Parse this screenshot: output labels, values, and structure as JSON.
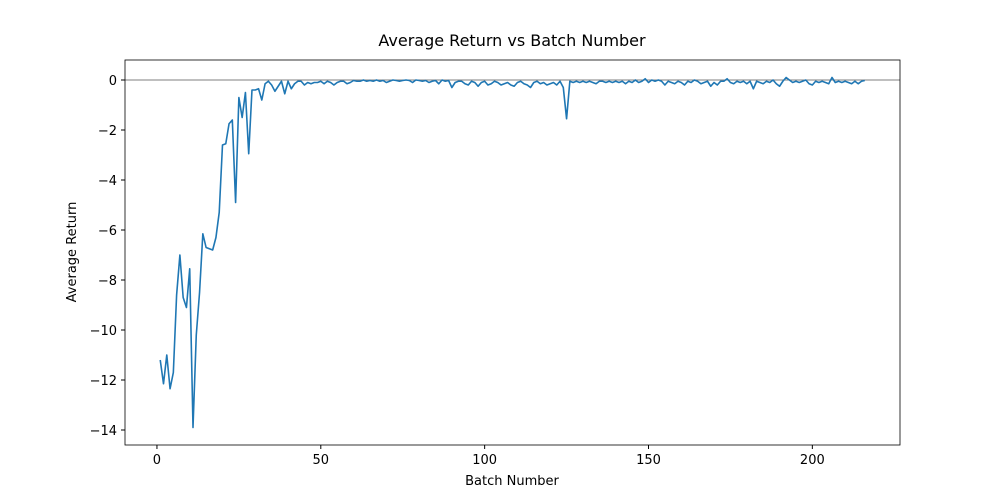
{
  "chart_data": {
    "type": "line",
    "title": "Average Return vs Batch Number",
    "xlabel": "Batch Number",
    "ylabel": "Average Return",
    "x": [
      1,
      2,
      3,
      4,
      5,
      6,
      7,
      8,
      9,
      10,
      11,
      12,
      13,
      14,
      15,
      16,
      17,
      18,
      19,
      20,
      21,
      22,
      23,
      24,
      25,
      26,
      27,
      28,
      29,
      30,
      31,
      32,
      33,
      34,
      35,
      36,
      37,
      38,
      39,
      40,
      41,
      42,
      43,
      44,
      45,
      46,
      47,
      48,
      49,
      50,
      51,
      52,
      53,
      54,
      55,
      56,
      57,
      58,
      59,
      60,
      61,
      62,
      63,
      64,
      65,
      66,
      67,
      68,
      69,
      70,
      71,
      72,
      73,
      74,
      75,
      76,
      77,
      78,
      79,
      80,
      81,
      82,
      83,
      84,
      85,
      86,
      87,
      88,
      89,
      90,
      91,
      92,
      93,
      94,
      95,
      96,
      97,
      98,
      99,
      100,
      101,
      102,
      103,
      104,
      105,
      106,
      107,
      108,
      109,
      110,
      111,
      112,
      113,
      114,
      115,
      116,
      117,
      118,
      119,
      120,
      121,
      122,
      123,
      124,
      125,
      126,
      127,
      128,
      129,
      130,
      131,
      132,
      133,
      134,
      135,
      136,
      137,
      138,
      139,
      140,
      141,
      142,
      143,
      144,
      145,
      146,
      147,
      148,
      149,
      150,
      151,
      152,
      153,
      154,
      155,
      156,
      157,
      158,
      159,
      160,
      161,
      162,
      163,
      164,
      165,
      166,
      167,
      168,
      169,
      170,
      171,
      172,
      173,
      174,
      175,
      176,
      177,
      178,
      179,
      180,
      181,
      182,
      183,
      184,
      185,
      186,
      187,
      188,
      189,
      190,
      191,
      192,
      193,
      194,
      195,
      196,
      197,
      198,
      199,
      200,
      201,
      202,
      203,
      204,
      205,
      206,
      207,
      208,
      209,
      210,
      211,
      212,
      213,
      214,
      215,
      216
    ],
    "series": [
      {
        "color": "#1f77b4",
        "values": [
          -11.2,
          -12.15,
          -11.0,
          -12.35,
          -11.7,
          -8.6,
          -7.0,
          -8.7,
          -9.1,
          -7.55,
          -13.9,
          -10.2,
          -8.5,
          -6.15,
          -6.7,
          -6.75,
          -6.8,
          -6.3,
          -5.3,
          -2.6,
          -2.55,
          -1.75,
          -1.6,
          -4.9,
          -0.7,
          -1.5,
          -0.5,
          -2.95,
          -0.4,
          -0.4,
          -0.35,
          -0.8,
          -0.15,
          -0.05,
          -0.2,
          -0.45,
          -0.25,
          -0.05,
          -0.55,
          -0.05,
          -0.35,
          -0.15,
          -0.05,
          -0.05,
          -0.2,
          -0.1,
          -0.15,
          -0.1,
          -0.1,
          -0.05,
          -0.15,
          -0.05,
          -0.1,
          -0.2,
          -0.1,
          -0.05,
          -0.05,
          -0.15,
          -0.1,
          -0.02,
          -0.05,
          -0.05,
          0,
          -0.05,
          -0.02,
          -0.05,
          0,
          -0.05,
          -0.02,
          -0.1,
          -0.05,
          0,
          -0.02,
          -0.05,
          -0.02,
          0,
          -0.02,
          -0.1,
          0,
          -0.02,
          -0.05,
          -0.02,
          -0.1,
          -0.05,
          -0.02,
          -0.15,
          0,
          -0.05,
          -0.02,
          -0.3,
          -0.1,
          -0.05,
          -0.05,
          -0.15,
          -0.2,
          -0.05,
          -0.1,
          -0.25,
          -0.1,
          -0.05,
          -0.2,
          -0.15,
          -0.05,
          -0.1,
          -0.2,
          -0.15,
          -0.1,
          -0.2,
          -0.25,
          -0.1,
          -0.05,
          -0.15,
          -0.2,
          -0.3,
          -0.1,
          -0.05,
          -0.15,
          -0.1,
          -0.2,
          -0.15,
          -0.1,
          -0.2,
          -0.05,
          -0.3,
          -1.55,
          -0.05,
          -0.1,
          -0.05,
          -0.1,
          -0.05,
          -0.1,
          -0.05,
          -0.1,
          -0.15,
          -0.05,
          -0.05,
          -0.1,
          -0.05,
          -0.1,
          -0.05,
          -0.1,
          -0.05,
          -0.15,
          -0.05,
          -0.1,
          0,
          -0.1,
          -0.05,
          0.05,
          -0.1,
          0,
          -0.05,
          0,
          -0.05,
          -0.2,
          -0.05,
          -0.1,
          -0.15,
          -0.05,
          -0.1,
          -0.2,
          -0.05,
          -0.1,
          0,
          -0.05,
          -0.15,
          -0.1,
          -0.05,
          -0.25,
          -0.1,
          -0.2,
          -0.05,
          -0.05,
          0.05,
          -0.1,
          -0.15,
          -0.05,
          -0.1,
          -0.05,
          -0.15,
          -0.05,
          -0.35,
          -0.05,
          -0.1,
          -0.15,
          -0.05,
          -0.1,
          0,
          -0.15,
          -0.25,
          -0.05,
          0.1,
          0,
          -0.1,
          -0.05,
          -0.1,
          -0.05,
          0,
          -0.15,
          -0.2,
          -0.05,
          -0.1,
          -0.05,
          -0.1,
          -0.15,
          0.1,
          -0.1,
          -0.05,
          -0.1,
          -0.05,
          -0.1,
          -0.15,
          -0.05,
          -0.15,
          -0.05,
          -0.02
        ]
      }
    ],
    "hline": 0,
    "xlim": [
      -9.75,
      226.75
    ],
    "ylim": [
      -14.6,
      0.8
    ],
    "xticks": [
      0,
      50,
      100,
      150,
      200
    ],
    "yticks": [
      0,
      {
        "value": -2,
        "label": "−2"
      },
      {
        "value": -4,
        "label": "−4"
      },
      {
        "value": -6,
        "label": "−6"
      },
      {
        "value": -8,
        "label": "−8"
      },
      {
        "value": -10,
        "label": "−10"
      },
      {
        "value": -12,
        "label": "−12"
      },
      {
        "value": -14,
        "label": "−14"
      }
    ],
    "grid": false
  }
}
